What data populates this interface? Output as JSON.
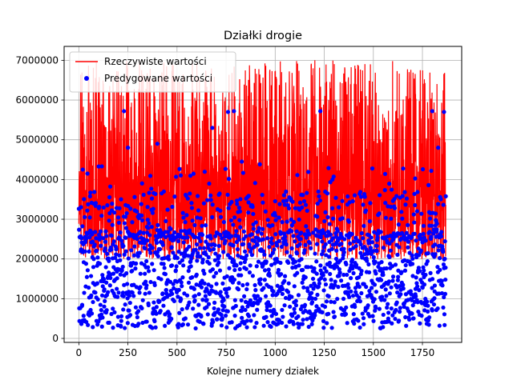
{
  "chart_data": {
    "type": "line+scatter",
    "title": "Działki drogie",
    "xlabel": "Kolejne numery działek",
    "ylabel": "",
    "xlim": [
      -75,
      1950
    ],
    "ylim": [
      -100000,
      7350000
    ],
    "xticks": [
      0,
      250,
      500,
      750,
      1000,
      1250,
      1500,
      1750
    ],
    "yticks": [
      0,
      1000000,
      2000000,
      3000000,
      4000000,
      5000000,
      6000000,
      7000000
    ],
    "xtick_labels": [
      "0",
      "250",
      "500",
      "750",
      "1000",
      "1250",
      "1500",
      "1750"
    ],
    "ytick_labels": [
      "0",
      "1000000",
      "2000000",
      "3000000",
      "4000000",
      "5000000",
      "6000000",
      "7000000"
    ],
    "grid": true,
    "legend_position": "upper-left",
    "n_points": 1870,
    "series": [
      {
        "name": "Rzeczywiste wartości",
        "kind": "line",
        "color": "#ff0000",
        "range": [
          2000000,
          7000000
        ],
        "typical_band": [
          2000000,
          4500000
        ],
        "frequent_spikes": [
          5700000,
          7000000
        ]
      },
      {
        "name": "Predygowane wartości",
        "kind": "scatter",
        "color": "#0000ff",
        "range": [
          200000,
          5700000
        ],
        "dense_band": [
          250000,
          2700000
        ],
        "sparse_outliers": [
          [
            20,
            4250000
          ],
          [
            230,
            5720000
          ],
          [
            250,
            4800000
          ],
          [
            400,
            4900000
          ],
          [
            680,
            5300000
          ],
          [
            760,
            5700000
          ],
          [
            790,
            5720000
          ],
          [
            830,
            4450000
          ],
          [
            1230,
            5720000
          ],
          [
            1800,
            5720000
          ],
          [
            1830,
            4800000
          ],
          [
            1860,
            5700000
          ]
        ]
      }
    ]
  },
  "colors": {
    "actual": "#ff0000",
    "predicted": "#0000ff",
    "grid": "#b0b0b0"
  }
}
